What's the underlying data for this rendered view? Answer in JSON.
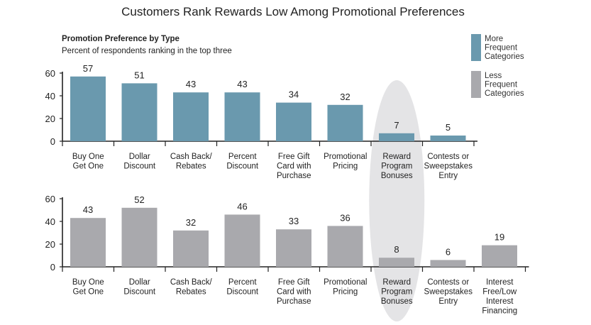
{
  "colors": {
    "more": "#6a99ae",
    "less": "#a9a9ad",
    "highlight": "#e4e4e6",
    "axis": "#222222"
  },
  "chart_data": [
    {
      "type": "bar",
      "title": "Customers Rank Rewards Low Among Promotional Preferences",
      "subtitle_bold": "Promotion Preference by Type",
      "subtitle": "Percent of respondents ranking in the top three",
      "series_name": "More Frequent Categories",
      "categories": [
        [
          "Buy One",
          "Get One"
        ],
        [
          "Dollar",
          "Discount"
        ],
        [
          "Cash Back/",
          "Rebates"
        ],
        [
          "Percent",
          "Discount"
        ],
        [
          "Free Gift",
          "Card with",
          "Purchase"
        ],
        [
          "Promotional",
          "Pricing"
        ],
        [
          "Reward",
          "Program",
          "Bonuses"
        ],
        [
          "Contests or",
          "Sweepstakes",
          "Entry"
        ]
      ],
      "values": [
        57,
        51,
        43,
        43,
        34,
        32,
        7,
        5
      ],
      "yticks": [
        0,
        20,
        40,
        60
      ],
      "ylim": [
        0,
        60
      ]
    },
    {
      "type": "bar",
      "series_name": "Less Frequent Categories",
      "categories": [
        [
          "Buy One",
          "Get One"
        ],
        [
          "Dollar",
          "Discount"
        ],
        [
          "Cash Back/",
          "Rebates"
        ],
        [
          "Percent",
          "Discount"
        ],
        [
          "Free Gift",
          "Card with",
          "Purchase"
        ],
        [
          "Promotional",
          "Pricing"
        ],
        [
          "Reward",
          "Program",
          "Bonuses"
        ],
        [
          "Contests or",
          "Sweepstakes",
          "Entry"
        ],
        [
          "Interest",
          "Free/Low",
          "Interest",
          "Financing"
        ]
      ],
      "values": [
        43,
        52,
        32,
        46,
        33,
        36,
        8,
        6,
        19
      ],
      "yticks": [
        0,
        20,
        40,
        60
      ],
      "ylim": [
        0,
        60
      ]
    }
  ],
  "legend": [
    {
      "lines": [
        "More",
        "Frequent",
        "Categories"
      ],
      "color_key": "more"
    },
    {
      "lines": [
        "Less",
        "Frequent",
        "Categories"
      ],
      "color_key": "less"
    }
  ]
}
